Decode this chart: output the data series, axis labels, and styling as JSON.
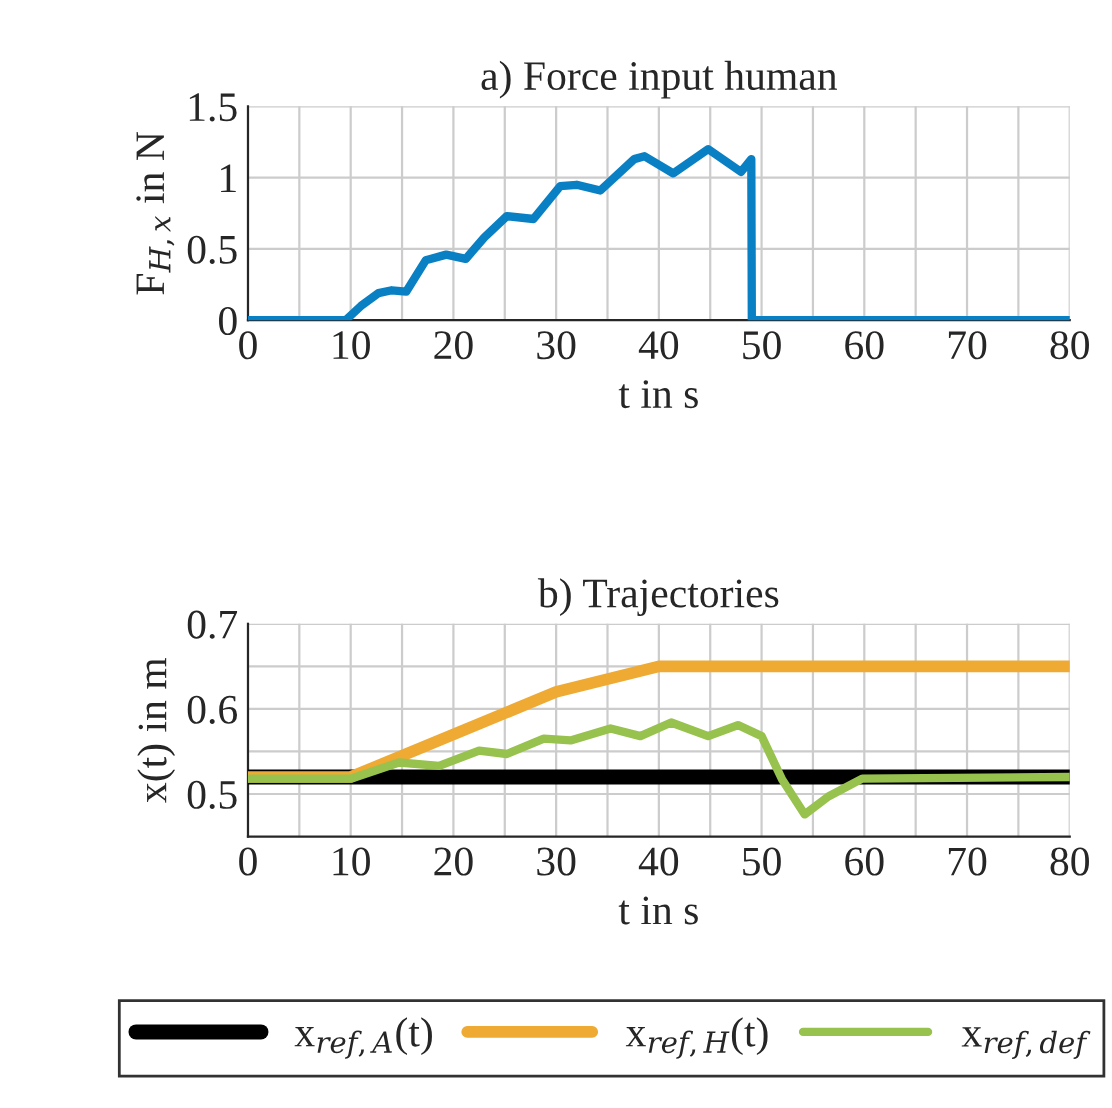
{
  "chart_data": [
    {
      "type": "line",
      "title": "a) Force input human",
      "xlabel": "t in s",
      "ylabel": "F$_{H,x}$ in N",
      "xlim": [
        0,
        80
      ],
      "xticks": [
        0,
        {
          "value": 5,
          "label": null
        },
        10,
        {
          "value": 15,
          "label": null
        },
        20,
        {
          "value": 25,
          "label": null
        },
        30,
        {
          "value": 35,
          "label": null
        },
        40,
        {
          "value": 45,
          "label": null
        },
        50,
        {
          "value": 55,
          "label": null
        },
        60,
        {
          "value": 65,
          "label": null
        },
        70,
        {
          "value": 75,
          "label": null
        },
        80
      ],
      "ylim": [
        0,
        1.5
      ],
      "yticks": [
        0,
        0.5,
        1,
        1.5
      ],
      "grid": true,
      "legend": false,
      "series": [
        {
          "color": "#0a80c4",
          "x": [
            0,
            9.5,
            11,
            12.7,
            14,
            15.4,
            17.3,
            19.3,
            21.2,
            23,
            25.2,
            27.8,
            30.4,
            32,
            34.3,
            37.6,
            38.6,
            41.4,
            44.8,
            48,
            49,
            49.05,
            80
          ],
          "values": [
            0,
            0,
            0.1,
            0.19,
            0.21,
            0.2,
            0.42,
            0.46,
            0.43,
            0.58,
            0.73,
            0.71,
            0.94,
            0.95,
            0.91,
            1.13,
            1.15,
            1.03,
            1.2,
            1.04,
            1.13,
            0,
            0
          ]
        }
      ]
    },
    {
      "type": "line",
      "title": "b) Trajectories",
      "xlabel": "t in s",
      "ylabel": "x(t) in m",
      "xlim": [
        0,
        80
      ],
      "xticks": [
        0,
        {
          "value": 5,
          "label": null
        },
        10,
        {
          "value": 15,
          "label": null
        },
        20,
        {
          "value": 25,
          "label": null
        },
        30,
        {
          "value": 35,
          "label": null
        },
        40,
        {
          "value": 45,
          "label": null
        },
        50,
        {
          "value": 55,
          "label": null
        },
        60,
        {
          "value": 65,
          "label": null
        },
        70,
        {
          "value": 75,
          "label": null
        },
        80
      ],
      "ylim": [
        0.45,
        0.7
      ],
      "yticks": [
        0.5,
        {
          "value": 0.55,
          "label": null
        },
        0.6,
        {
          "value": 0.65,
          "label": null
        },
        0.7
      ],
      "grid": true,
      "legend": "bottom",
      "series": [
        {
          "name": "x$_{ref,A}$(t)",
          "color": "#000000",
          "x": [
            0,
            80
          ],
          "values": [
            0.52,
            0.52
          ]
        },
        {
          "name": "x$_{ref,H}$(t)",
          "color": "#eeaa33",
          "x": [
            0,
            10,
            30,
            40,
            80
          ],
          "values": [
            0.52,
            0.52,
            0.62,
            0.65,
            0.65
          ]
        },
        {
          "name": "x$_{ref,def}$",
          "color": "#97c24e",
          "x": [
            0,
            10,
            14.7,
            18.6,
            22.5,
            25.2,
            28.8,
            31.4,
            35.3,
            38.2,
            41.2,
            44.8,
            47.7,
            50,
            52,
            54.2,
            56.5,
            59.8,
            80
          ],
          "values": [
            0.518,
            0.518,
            0.537,
            0.533,
            0.551,
            0.547,
            0.565,
            0.563,
            0.577,
            0.568,
            0.584,
            0.568,
            0.581,
            0.568,
            0.517,
            0.476,
            0.497,
            0.518,
            0.52
          ]
        }
      ]
    }
  ]
}
